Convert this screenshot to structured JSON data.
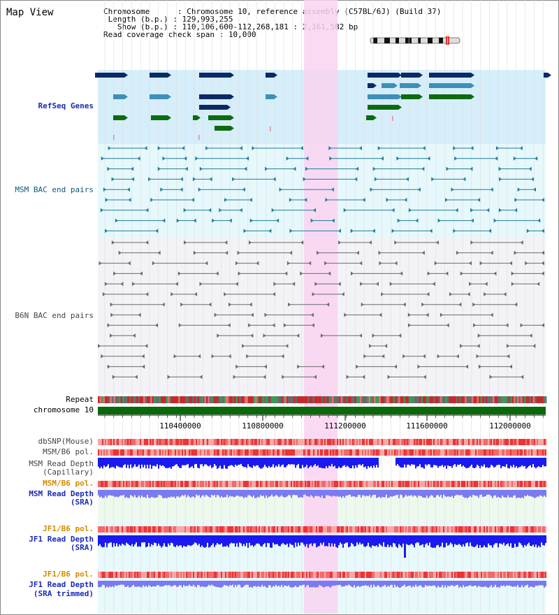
{
  "view_title": "Map View",
  "info": {
    "chromosome_key": "Chromosome",
    "chromosome_val": "Chromosome 10, reference assembly (C57BL/6J) (Build 37)",
    "length_key": "Length (b.p.)",
    "length_val": "129,993,255",
    "show_key": "Show (b.p.)",
    "show_val": "110,106,600-112,268,181 : 2,161,582 bp",
    "coverage_key": "Read coverage check span",
    "coverage_val": "10,000"
  },
  "tracks": {
    "refseq": "RefSeq Genes",
    "msm_bac": "MSM BAC end pairs",
    "b6n_bac": "B6N BAC end pairs",
    "repeat": "Repeat",
    "chromosome": "chromosome 10",
    "dbsnp": "dbSNP(Mouse)",
    "msm_b6_pol": "MSM/B6 pol.",
    "msm_read_depth_cap_1": "MSM Read Depth",
    "msm_read_depth_cap_2": "(Capillary)",
    "msm_b6_pol_sra": "MSM/B6 pol.",
    "msm_read_depth_sra_1": "MSM Read Depth",
    "msm_read_depth_sra_2": "(SRA)",
    "jf1_b6_pol": "JF1/B6 pol.",
    "jf1_read_depth_1": "JF1 Read Depth",
    "jf1_read_depth_2": "(SRA)",
    "jf1_b6_pol_trim": "JF1/B6 pol.",
    "jf1_read_depth_trim_1": "JF1 Read Depth",
    "jf1_read_depth_trim_2": "(SRA trimmed)"
  },
  "axis": {
    "ticks": [
      "110400000",
      "110800000",
      "111200000",
      "111600000",
      "112000000"
    ]
  },
  "colors": {
    "refseq_bg": "#d6eef9",
    "msm_bg": "#e6f8fb",
    "b6n_bg": "#f3f3f7",
    "highlight": "#f9d4f1",
    "gene_navy": "#0a2a66",
    "gene_blue": "#3e8fb8",
    "gene_green": "#0c6b10",
    "msm_teal": "#207d99",
    "b6n_gray": "#6a6a6a",
    "chromosome_green": "#0a6a0a",
    "depth_blue": "#1a1aee",
    "depth_light": "#7a7af2"
  }
}
